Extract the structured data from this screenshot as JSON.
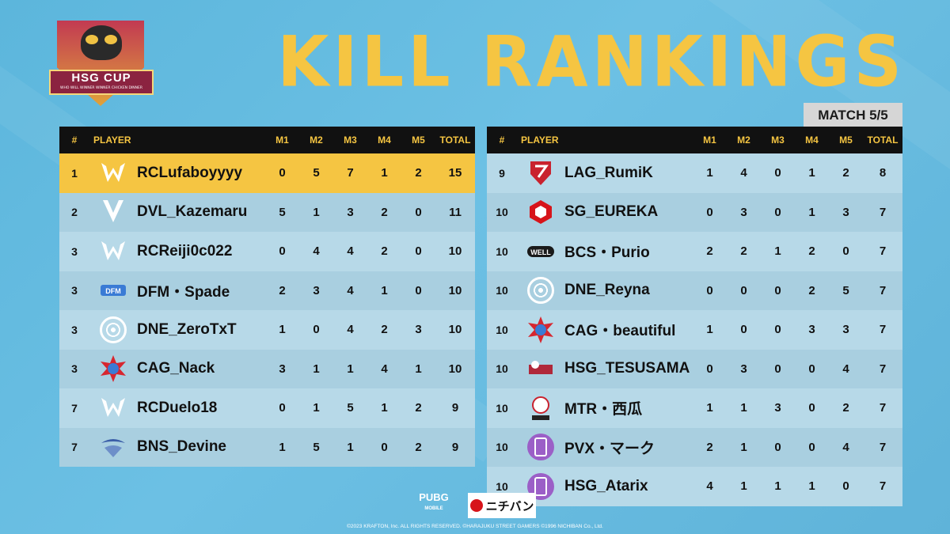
{
  "logo": {
    "title": "HSG CUP",
    "subtitle": "WHO WILL WINNER WINNER CHICKEN DINNER"
  },
  "headline": "KILL RANKINGS",
  "match": "MATCH 5/5",
  "columns": {
    "rank": "#",
    "player": "PLAYER",
    "m1": "M1",
    "m2": "M2",
    "m3": "M3",
    "m4": "M4",
    "m5": "M5",
    "total": "TOTAL"
  },
  "left_rows": [
    {
      "rank": "1",
      "player": "RCLufaboyyyy",
      "m1": "0",
      "m2": "5",
      "m3": "7",
      "m4": "1",
      "m5": "2",
      "total": "15",
      "logo": "w-icon",
      "highlight": true
    },
    {
      "rank": "2",
      "player": "DVL_Kazemaru",
      "m1": "5",
      "m2": "1",
      "m3": "3",
      "m4": "2",
      "m5": "0",
      "total": "11",
      "logo": "v-icon"
    },
    {
      "rank": "3",
      "player": "RCReiji0c022",
      "m1": "0",
      "m2": "4",
      "m3": "4",
      "m4": "2",
      "m5": "0",
      "total": "10",
      "logo": "w-icon"
    },
    {
      "rank": "3",
      "player": "DFM・Spade",
      "m1": "2",
      "m2": "3",
      "m3": "4",
      "m4": "1",
      "m5": "0",
      "total": "10",
      "logo": "dfm-icon"
    },
    {
      "rank": "3",
      "player": "DNE_ZeroTxT",
      "m1": "1",
      "m2": "0",
      "m3": "4",
      "m4": "2",
      "m5": "3",
      "total": "10",
      "logo": "circle-icon"
    },
    {
      "rank": "3",
      "player": "CAG_Nack",
      "m1": "3",
      "m2": "1",
      "m3": "1",
      "m4": "4",
      "m5": "1",
      "total": "10",
      "logo": "burst-icon"
    },
    {
      "rank": "7",
      "player": "RCDuelo18",
      "m1": "0",
      "m2": "1",
      "m3": "5",
      "m4": "1",
      "m5": "2",
      "total": "9",
      "logo": "w-icon"
    },
    {
      "rank": "7",
      "player": "BNS_Devine",
      "m1": "1",
      "m2": "5",
      "m3": "1",
      "m4": "0",
      "m5": "2",
      "total": "9",
      "logo": "wing-icon"
    }
  ],
  "right_rows": [
    {
      "rank": "9",
      "player": "LAG_RumiK",
      "m1": "1",
      "m2": "4",
      "m3": "0",
      "m4": "1",
      "m5": "2",
      "total": "8",
      "logo": "shield-icon"
    },
    {
      "rank": "10",
      "player": "SG_EUREKA",
      "m1": "0",
      "m2": "3",
      "m3": "0",
      "m4": "1",
      "m5": "3",
      "total": "7",
      "logo": "hex-icon"
    },
    {
      "rank": "10",
      "player": "BCS・Purio",
      "m1": "2",
      "m2": "2",
      "m3": "1",
      "m4": "2",
      "m5": "0",
      "total": "7",
      "logo": "well-icon"
    },
    {
      "rank": "10",
      "player": "DNE_Reyna",
      "m1": "0",
      "m2": "0",
      "m3": "0",
      "m4": "2",
      "m5": "5",
      "total": "7",
      "logo": "circle-icon"
    },
    {
      "rank": "10",
      "player": "CAG・beautiful",
      "m1": "1",
      "m2": "0",
      "m3": "0",
      "m4": "3",
      "m5": "3",
      "total": "7",
      "logo": "burst-icon"
    },
    {
      "rank": "10",
      "player": "HSG_TESUSAMA",
      "m1": "0",
      "m2": "3",
      "m3": "0",
      "m4": "0",
      "m5": "4",
      "total": "7",
      "logo": "hsg-icon"
    },
    {
      "rank": "10",
      "player": "MTR・西瓜",
      "m1": "1",
      "m2": "1",
      "m3": "3",
      "m4": "0",
      "m5": "2",
      "total": "7",
      "logo": "mtr-icon"
    },
    {
      "rank": "10",
      "player": "PVX・マーク",
      "m1": "2",
      "m2": "1",
      "m3": "0",
      "m4": "0",
      "m5": "4",
      "total": "7",
      "logo": "pill-icon"
    },
    {
      "rank": "10",
      "player": "HSG_Atarix",
      "m1": "4",
      "m2": "1",
      "m3": "1",
      "m4": "1",
      "m5": "0",
      "total": "7",
      "logo": "pill-icon"
    }
  ],
  "footer": {
    "pubg": "PUBG",
    "pubg_sub": "MOBILE",
    "sponsor": "ニチバン",
    "copyright": "©2023 KRAFTON, Inc. ALL RIGHTS RESERVED.   ©HARAJUKU STREET GAMERS   ©1996 NICHIBAN Co., Ltd."
  },
  "colors": {
    "accent": "#f5c542",
    "header": "#111111",
    "row_a": "#b7d9e8",
    "row_b": "#a9cfe0"
  }
}
